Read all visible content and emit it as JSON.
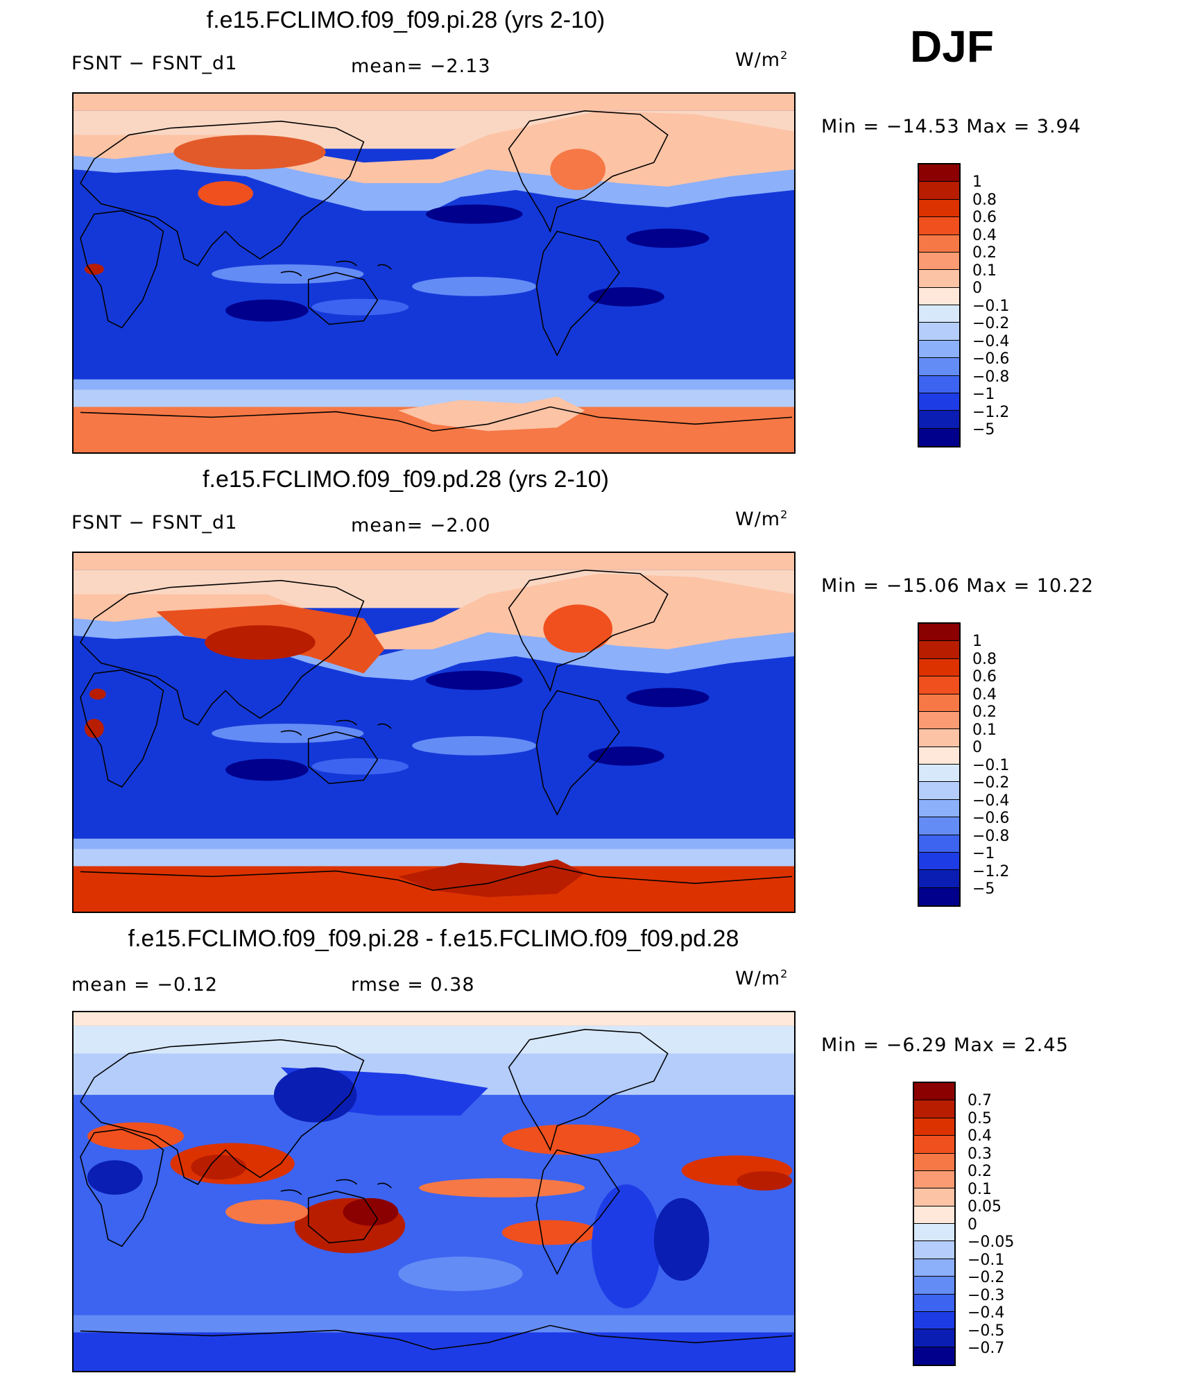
{
  "season": "DJF",
  "panels": [
    {
      "title": "f.e15.FCLIMO.f09_f09.pi.28 (yrs 2-10)",
      "left_label": "FSNT  −  FSNT_d1",
      "mid_label": "mean=   −2.13",
      "units": "W/m",
      "units_sup": "2",
      "minmax": "Min  =  −14.53  Max  =     3.94",
      "colorbar": {
        "levels": [
          "1",
          "0.8",
          "0.6",
          "0.4",
          "0.2",
          "0.1",
          "0",
          "−0.1",
          "−0.2",
          "−0.4",
          "−0.6",
          "−0.8",
          "−1",
          "−1.2",
          "−5"
        ],
        "colors": [
          "#8b0000",
          "#b81d00",
          "#dc3200",
          "#f0501e",
          "#f57846",
          "#fa9b73",
          "#fcc3a5",
          "#ffe8d9",
          "#d7e8fb",
          "#b4cdfa",
          "#8cb0fa",
          "#648cf5",
          "#3c64f0",
          "#1e3ce6",
          "#0a1eb4",
          "#00008c"
        ]
      }
    },
    {
      "title": "f.e15.FCLIMO.f09_f09.pd.28 (yrs 2-10)",
      "left_label": "FSNT  −  FSNT_d1",
      "mid_label": "mean=   −2.00",
      "units": "W/m",
      "units_sup": "2",
      "minmax": "Min  =  −15.06  Max  =   10.22",
      "colorbar": {
        "levels": [
          "1",
          "0.8",
          "0.6",
          "0.4",
          "0.2",
          "0.1",
          "0",
          "−0.1",
          "−0.2",
          "−0.4",
          "−0.6",
          "−0.8",
          "−1",
          "−1.2",
          "−5"
        ],
        "colors": [
          "#8b0000",
          "#b81d00",
          "#dc3200",
          "#f0501e",
          "#f57846",
          "#fa9b73",
          "#fcc3a5",
          "#ffe8d9",
          "#d7e8fb",
          "#b4cdfa",
          "#8cb0fa",
          "#648cf5",
          "#3c64f0",
          "#1e3ce6",
          "#0a1eb4",
          "#00008c"
        ]
      }
    },
    {
      "title": "f.e15.FCLIMO.f09_f09.pi.28 - f.e15.FCLIMO.f09_f09.pd.28",
      "left_label": "mean  =    −0.12",
      "mid_label": "rmse  =     0.38",
      "units": "W/m",
      "units_sup": "2",
      "minmax": "Min  =     −6.29  Max  =     2.45",
      "colorbar": {
        "levels": [
          "0.7",
          "0.5",
          "0.4",
          "0.3",
          "0.2",
          "0.1",
          "0.05",
          "0",
          "−0.05",
          "−0.1",
          "−0.2",
          "−0.3",
          "−0.4",
          "−0.5",
          "−0.7"
        ],
        "colors": [
          "#8b0000",
          "#b81d00",
          "#dc3200",
          "#f0501e",
          "#f57846",
          "#fa9b73",
          "#fcc3a5",
          "#ffe8d9",
          "#d7e8fb",
          "#b4cdfa",
          "#8cb0fa",
          "#648cf5",
          "#3c64f0",
          "#1e3ce6",
          "#0a1eb4",
          "#00008c"
        ]
      }
    }
  ]
}
